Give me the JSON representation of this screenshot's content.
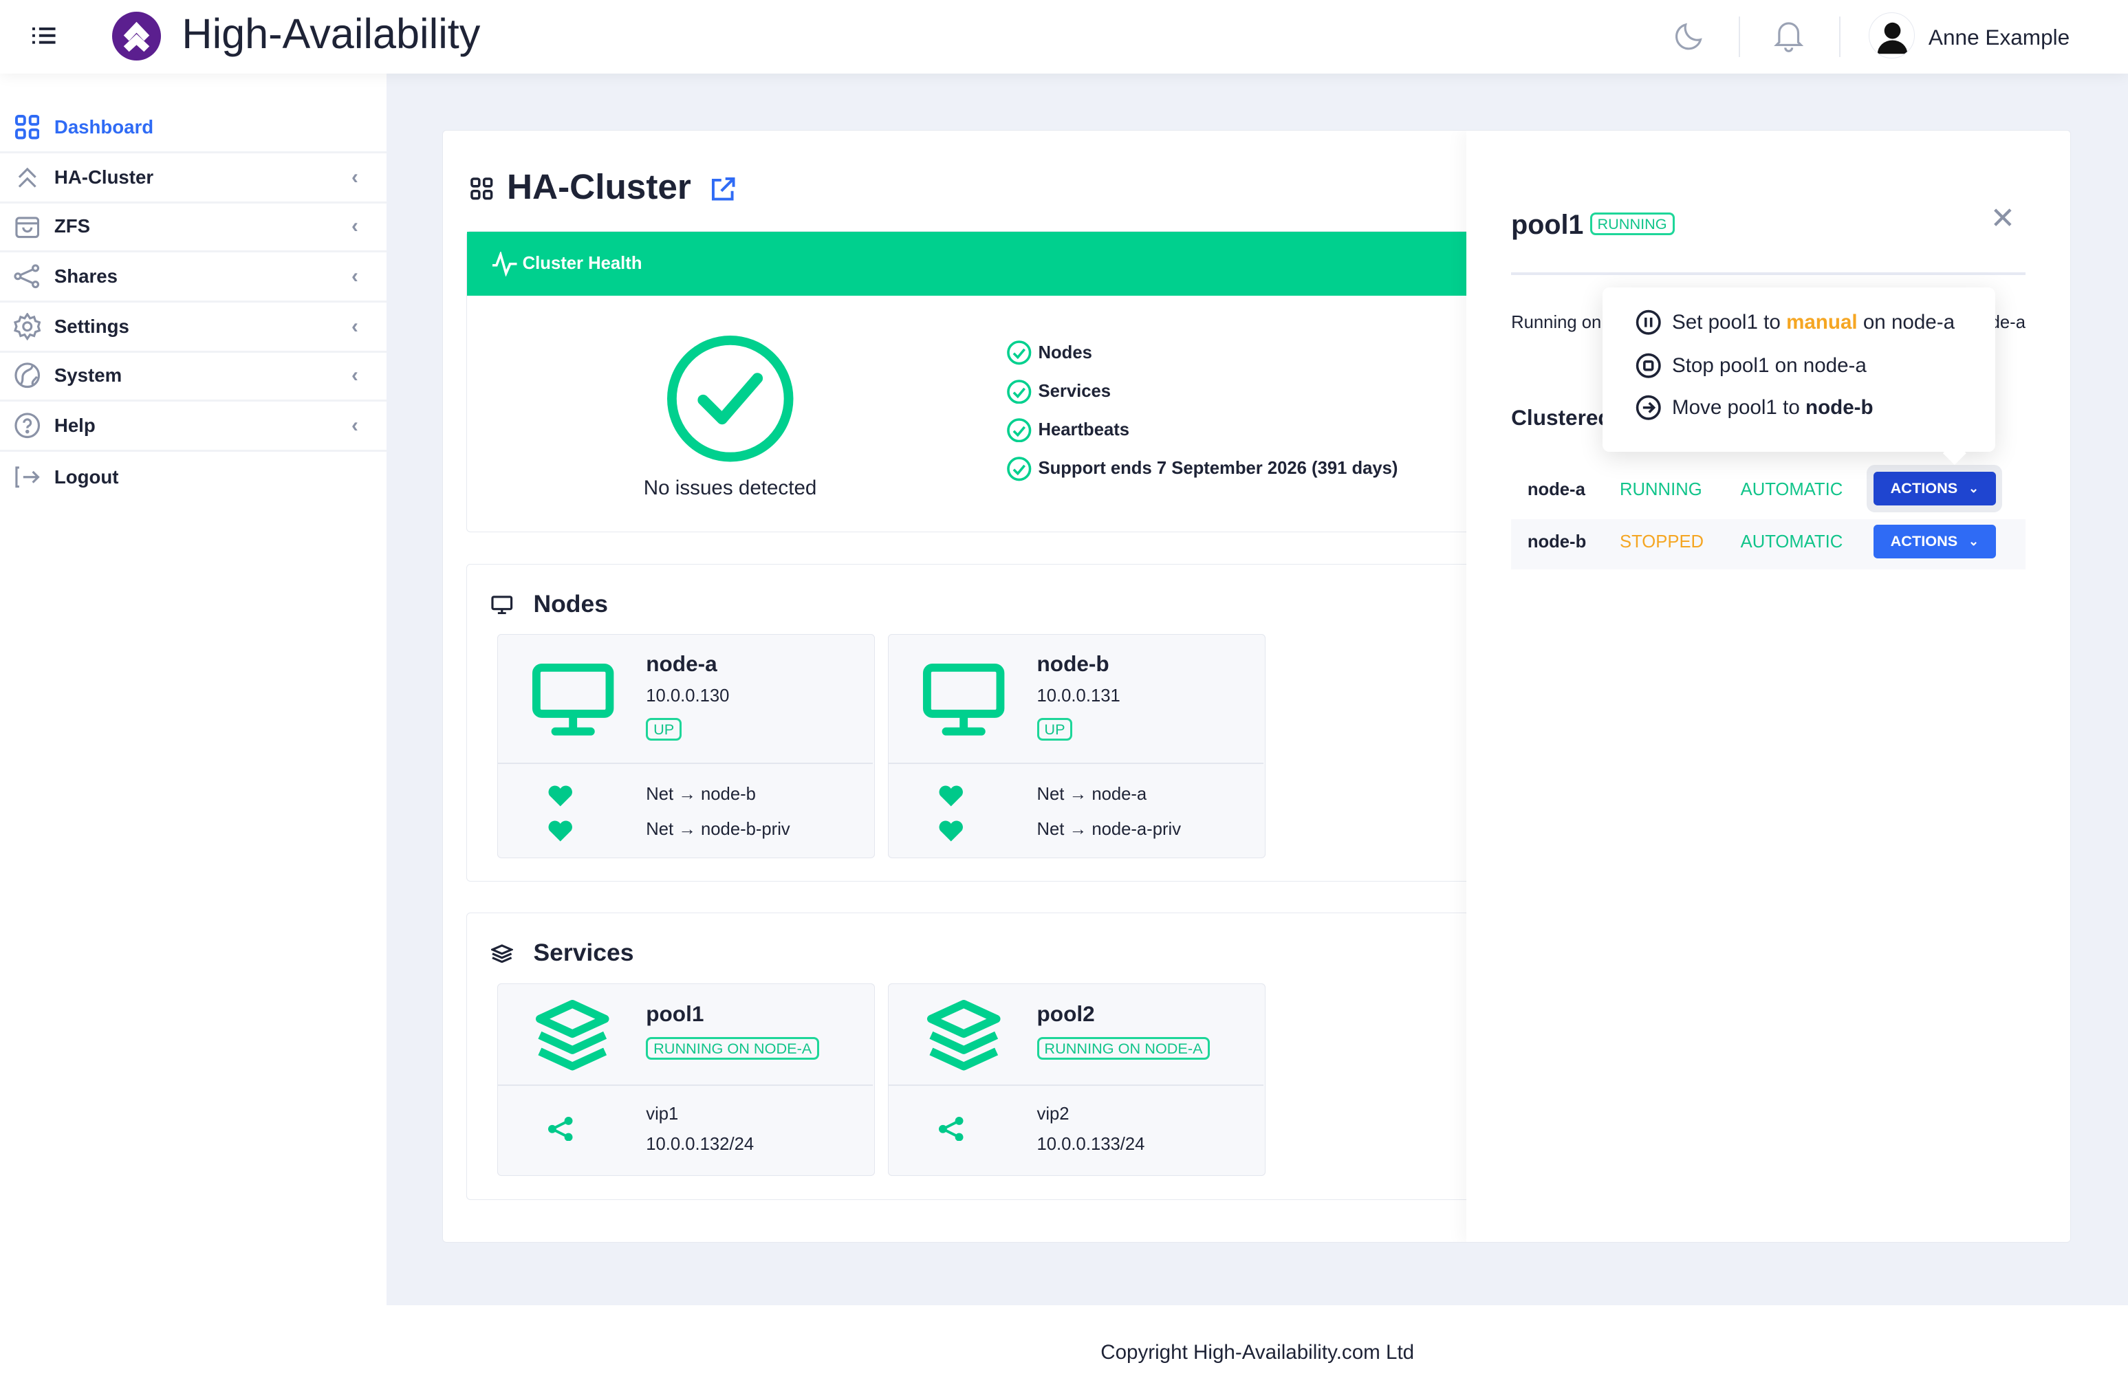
{
  "header": {
    "brand": "High-Availability",
    "user_name": "Anne Example"
  },
  "sidebar": {
    "items": [
      {
        "label": "Dashboard",
        "icon": "grid-icon",
        "active": true
      },
      {
        "label": "HA-Cluster",
        "icon": "double-chevron-up-icon"
      },
      {
        "label": "ZFS",
        "icon": "bag-icon"
      },
      {
        "label": "Shares",
        "icon": "share-icon"
      },
      {
        "label": "Settings",
        "icon": "gear-icon"
      },
      {
        "label": "System",
        "icon": "globe-icon"
      },
      {
        "label": "Help",
        "icon": "question-icon"
      },
      {
        "label": "Logout",
        "icon": "logout-icon"
      }
    ]
  },
  "page": {
    "title": "HA-Cluster"
  },
  "health": {
    "title": "Cluster Health",
    "status": "No issues detected",
    "checks": [
      "Nodes",
      "Services",
      "Heartbeats",
      "Support ends 7 September 2026 (391 days)"
    ]
  },
  "nodes": {
    "title": "Nodes",
    "items": [
      {
        "name": "node-a",
        "ip": "10.0.0.130",
        "state": "UP",
        "links": [
          "Net → node-b",
          "Net → node-b-priv"
        ]
      },
      {
        "name": "node-b",
        "ip": "10.0.0.131",
        "state": "UP",
        "links": [
          "Net → node-a",
          "Net → node-a-priv"
        ]
      }
    ]
  },
  "services": {
    "title": "Services",
    "items": [
      {
        "name": "pool1",
        "state": "RUNNING ON NODE-A",
        "vip": "vip1",
        "addr": "10.0.0.132/24"
      },
      {
        "name": "pool2",
        "state": "RUNNING ON NODE-A",
        "vip": "vip2",
        "addr": "10.0.0.133/24"
      }
    ]
  },
  "drawer": {
    "title": "pool1",
    "badge": "RUNNING",
    "running_on_left": "Running on",
    "running_on_right": "node-a",
    "clustered": "Clustered",
    "rows": [
      {
        "node": "node-a",
        "status": "RUNNING",
        "mode": "AUTOMATIC",
        "action": "ACTIONS"
      },
      {
        "node": "node-b",
        "status": "STOPPED",
        "mode": "AUTOMATIC",
        "action": "ACTIONS"
      }
    ],
    "menu": {
      "set_prefix": "Set pool1 to",
      "set_mode": "manual",
      "set_suffix": "on node-a",
      "stop": "Stop pool1 on node-a",
      "move_prefix": "Move pool1 to",
      "move_target": "node-b"
    }
  },
  "footer": {
    "copyright": "Copyright High-Availability.com Ltd"
  },
  "colors": {
    "accent": "#00d08e",
    "primary": "#2f6bf5",
    "primary_active": "#1f45d0",
    "warning": "#f5a623",
    "brand": "#5b1f8f"
  }
}
